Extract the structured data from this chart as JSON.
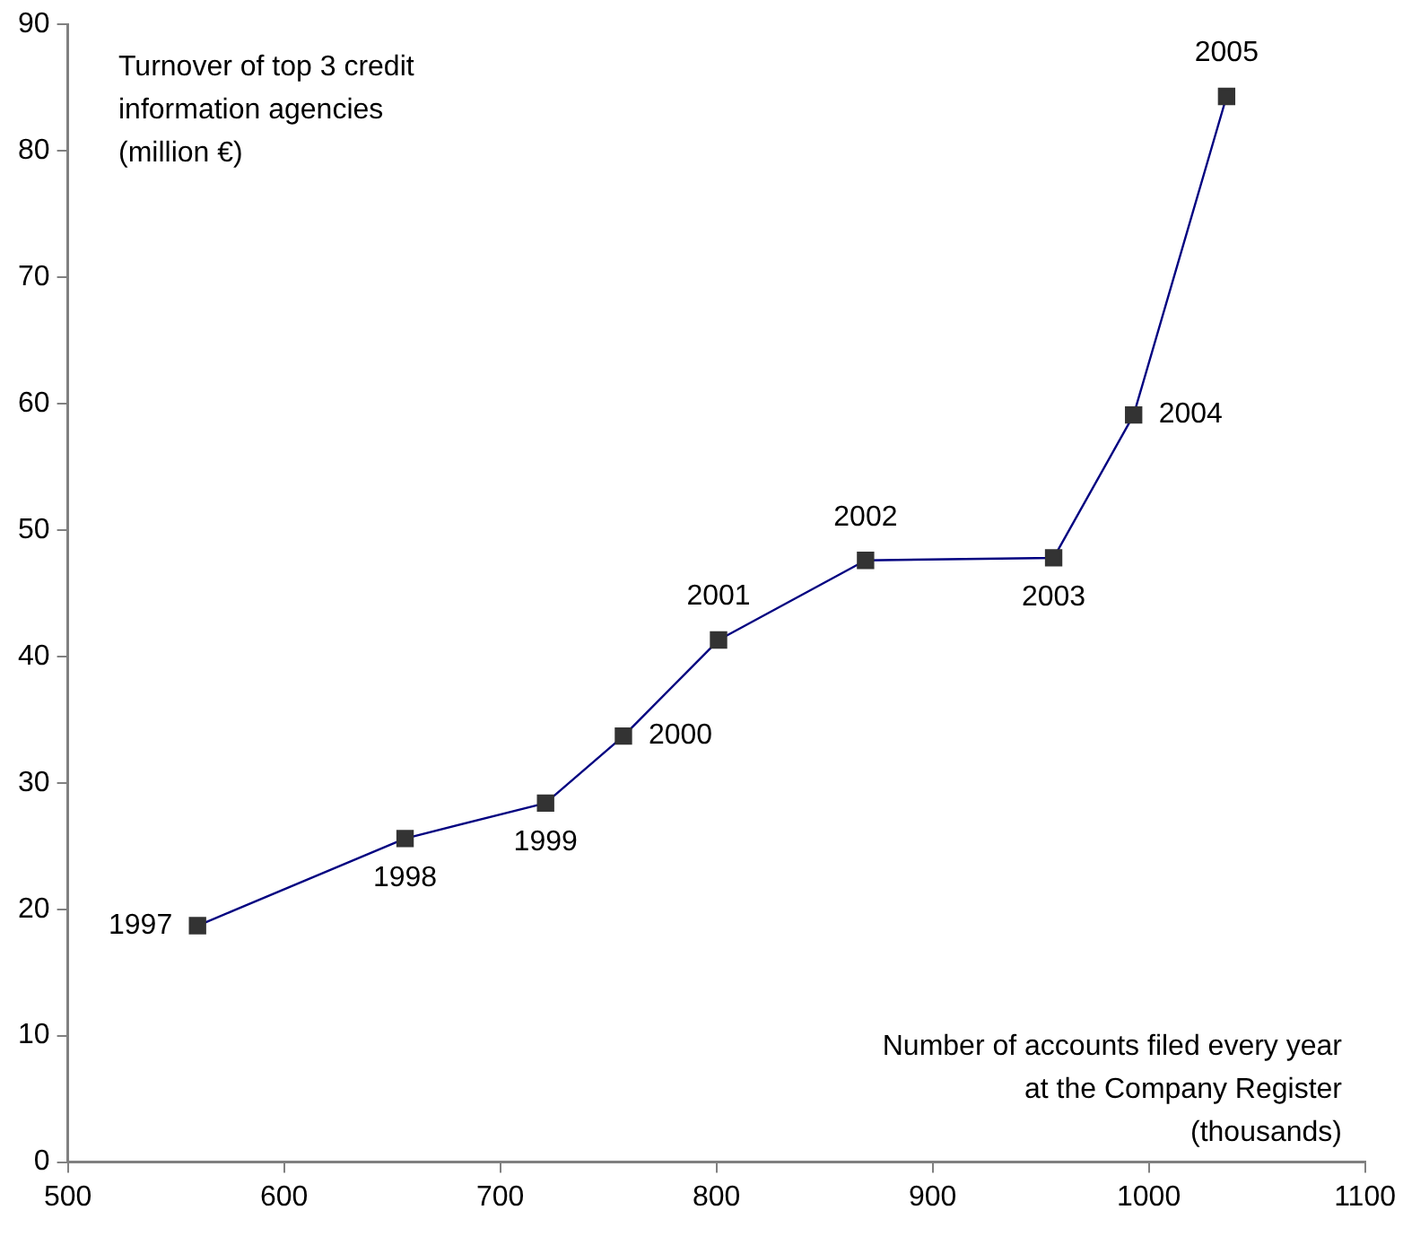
{
  "chart_data": {
    "type": "line",
    "xlabel": "Number of accounts filed every year at the Company Register (thousands)",
    "ylabel": "Turnover of top 3 credit information agencies (million €)",
    "x": [
      560,
      656,
      721,
      757,
      801,
      869,
      956,
      993,
      1036
    ],
    "series": [
      {
        "color": "#000080",
        "values": [
          18.7,
          25.6,
          28.4,
          33.7,
          41.3,
          47.6,
          47.8,
          59.1,
          84.3
        ]
      }
    ],
    "xlim": [
      500,
      1100
    ],
    "xticks": [
      500,
      600,
      700,
      800,
      900,
      1000,
      1100
    ],
    "ylim": [
      0,
      90
    ],
    "yticks": [
      0,
      10,
      20,
      30,
      40,
      50,
      60,
      70,
      80,
      90
    ],
    "grid": false,
    "legend": false,
    "marker": "square",
    "line_style": "solid",
    "annotations": [
      {
        "text": "1997",
        "x": 560,
        "y": 18.7
      },
      {
        "text": "1998",
        "x": 656,
        "y": 25.6
      },
      {
        "text": "1999",
        "x": 721,
        "y": 28.4
      },
      {
        "text": "2000",
        "x": 757,
        "y": 33.7
      },
      {
        "text": "2001",
        "x": 801,
        "y": 41.3
      },
      {
        "text": "2002",
        "x": 869,
        "y": 47.6
      },
      {
        "text": "2003",
        "x": 956,
        "y": 47.8
      },
      {
        "text": "2004",
        "x": 993,
        "y": 59.1
      },
      {
        "text": "2005",
        "x": 1036,
        "y": 84.3
      }
    ]
  }
}
